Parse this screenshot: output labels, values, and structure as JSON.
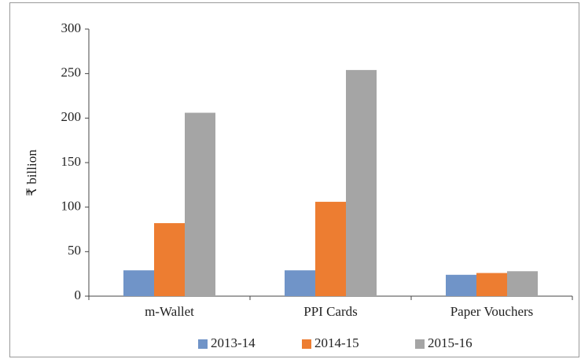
{
  "chart_data": {
    "type": "bar",
    "y_label": "₹ billion",
    "categories": [
      "m-Wallet",
      "PPI Cards",
      "Paper Vouchers"
    ],
    "series": [
      {
        "name": "2013-14",
        "color": "#7094c8",
        "values": [
          29,
          29,
          24
        ]
      },
      {
        "name": "2014-15",
        "color": "#ed7d31",
        "values": [
          82,
          106,
          26
        ]
      },
      {
        "name": "2015-16",
        "color": "#a5a5a5",
        "values": [
          206,
          254,
          28
        ]
      }
    ],
    "ylim": [
      0,
      300
    ],
    "yticks": [
      0,
      50,
      100,
      150,
      200,
      250,
      300
    ],
    "legend": "bottom"
  }
}
